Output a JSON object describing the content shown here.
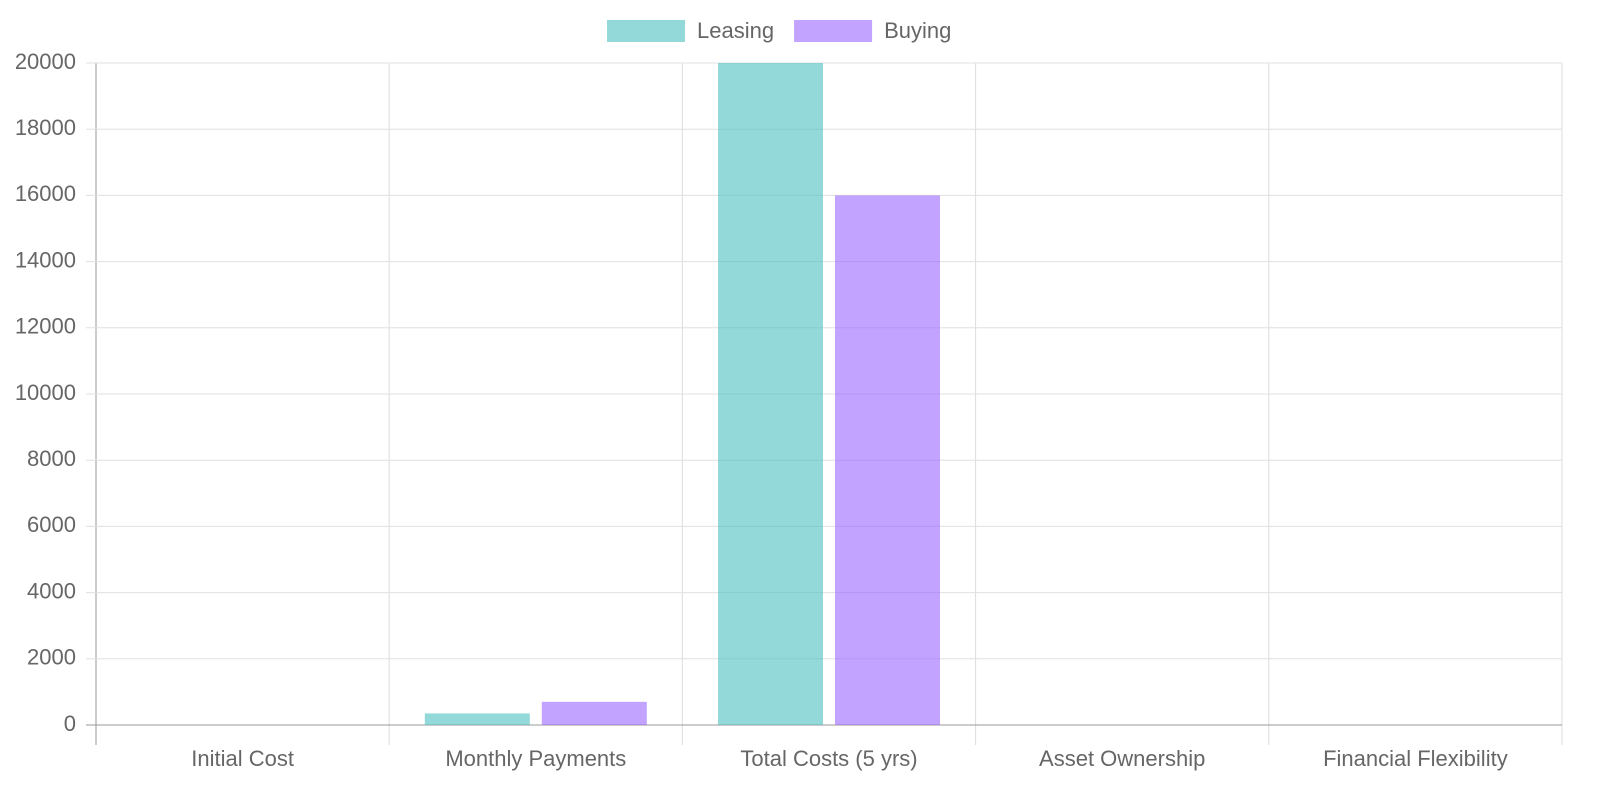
{
  "chart_data": {
    "type": "bar",
    "categories": [
      "Initial Cost",
      "Monthly Payments",
      "Total Costs (5 yrs)",
      "Asset Ownership",
      "Financial Flexibility"
    ],
    "series": [
      {
        "name": "Leasing",
        "color": "rgba(75, 192, 192, 0.6)",
        "values": [
          0,
          350,
          20000,
          0,
          0
        ]
      },
      {
        "name": "Buying",
        "color": "rgba(153, 102, 255, 0.6)",
        "values": [
          0,
          700,
          16000,
          0,
          0
        ]
      }
    ],
    "ylim": [
      0,
      20000
    ],
    "yticks": [
      0,
      2000,
      4000,
      6000,
      8000,
      10000,
      12000,
      14000,
      16000,
      18000,
      20000
    ],
    "grid": true,
    "legend": "top"
  }
}
